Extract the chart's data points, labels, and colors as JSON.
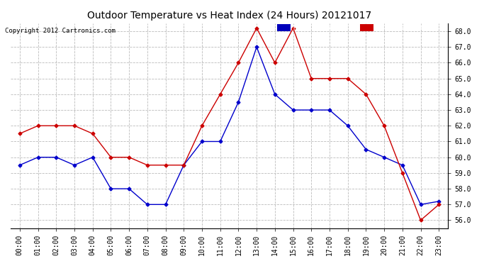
{
  "title": "Outdoor Temperature vs Heat Index (24 Hours) 20121017",
  "copyright": "Copyright 2012 Cartronics.com",
  "background_color": "#ffffff",
  "plot_bg_color": "#ffffff",
  "grid_color": "#bbbbbb",
  "ylim": [
    55.5,
    68.5
  ],
  "yticks": [
    56.0,
    57.0,
    58.0,
    59.0,
    60.0,
    61.0,
    62.0,
    63.0,
    64.0,
    65.0,
    66.0,
    67.0,
    68.0
  ],
  "hours": [
    "00:00",
    "01:00",
    "02:00",
    "03:00",
    "04:00",
    "05:00",
    "06:00",
    "07:00",
    "08:00",
    "09:00",
    "10:00",
    "11:00",
    "12:00",
    "13:00",
    "14:00",
    "15:00",
    "16:00",
    "17:00",
    "18:00",
    "19:00",
    "20:00",
    "21:00",
    "22:00",
    "23:00"
  ],
  "heat_index": [
    59.5,
    60.0,
    60.0,
    59.5,
    60.0,
    58.0,
    58.0,
    57.0,
    57.0,
    59.5,
    61.0,
    61.0,
    63.5,
    67.0,
    64.0,
    63.0,
    63.0,
    63.0,
    62.0,
    60.5,
    60.0,
    59.5,
    57.0,
    57.2
  ],
  "temperature": [
    61.5,
    62.0,
    62.0,
    62.0,
    61.5,
    60.0,
    60.0,
    59.5,
    59.5,
    59.5,
    62.0,
    64.0,
    66.0,
    68.2,
    66.0,
    68.2,
    65.0,
    65.0,
    65.0,
    64.0,
    62.0,
    59.0,
    56.0,
    57.0
  ],
  "heat_index_color": "#0000cc",
  "temperature_color": "#cc0000",
  "legend_hi_bg": "#0000bb",
  "legend_temp_bg": "#cc0000",
  "legend_text_color": "#ffffff",
  "marker": "D",
  "marker_size": 2.5,
  "line_width": 1.0,
  "title_fontsize": 10,
  "tick_fontsize": 7,
  "copyright_fontsize": 6.5
}
